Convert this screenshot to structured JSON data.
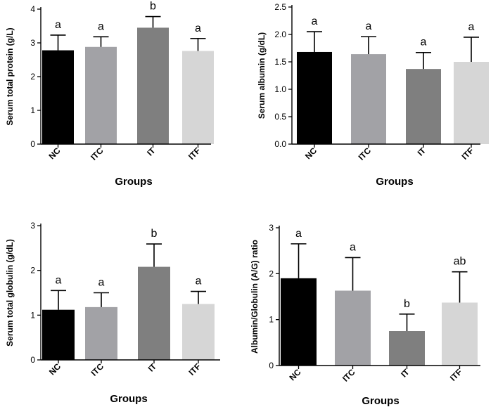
{
  "chart_data": [
    {
      "type": "bar",
      "title": "",
      "xlabel": "Groups",
      "ylabel": "Serum total protein (g/L)",
      "categories": [
        "NC",
        "ITC",
        "IT",
        "ITF"
      ],
      "values": [
        2.78,
        2.88,
        3.45,
        2.76
      ],
      "errors": [
        0.45,
        0.3,
        0.33,
        0.37
      ],
      "significance": [
        "a",
        "a",
        "b",
        "a"
      ],
      "ylim": [
        0,
        4
      ],
      "yticks": [
        "0",
        "1",
        "2",
        "3",
        "4"
      ],
      "colors": [
        "#000000",
        "#a2a2a6",
        "#7f7f7f",
        "#d6d6d6"
      ],
      "grid": false
    },
    {
      "type": "bar",
      "title": "",
      "xlabel": "Groups",
      "ylabel": "Serum albumin (g/dL)",
      "categories": [
        "NC",
        "ITC",
        "IT",
        "ITF"
      ],
      "values": [
        1.68,
        1.64,
        1.37,
        1.5
      ],
      "errors": [
        0.37,
        0.32,
        0.3,
        0.45
      ],
      "significance": [
        "a",
        "a",
        "a",
        "a"
      ],
      "ylim": [
        0,
        2.5
      ],
      "yticks": [
        "0.0",
        "0.5",
        "1.0",
        "1.5",
        "2.0",
        "2.5"
      ],
      "colors": [
        "#000000",
        "#a2a2a6",
        "#7f7f7f",
        "#d6d6d6"
      ],
      "grid": false
    },
    {
      "type": "bar",
      "title": "",
      "xlabel": "Groups",
      "ylabel": "Serum total globulin (g/dL)",
      "categories": [
        "NC",
        "ITC",
        "IT",
        "ITF"
      ],
      "values": [
        1.12,
        1.18,
        2.08,
        1.25
      ],
      "errors": [
        0.43,
        0.32,
        0.51,
        0.28
      ],
      "significance": [
        "a",
        "a",
        "b",
        "a"
      ],
      "ylim": [
        0,
        3
      ],
      "yticks": [
        "0",
        "1",
        "2",
        "3"
      ],
      "colors": [
        "#000000",
        "#a2a2a6",
        "#7f7f7f",
        "#d6d6d6"
      ],
      "grid": false
    },
    {
      "type": "bar",
      "title": "",
      "xlabel": "Groups",
      "ylabel": "Albumin/Globulin (A/G) ratio",
      "categories": [
        "NC",
        "ITC",
        "IT",
        "ITF"
      ],
      "values": [
        1.9,
        1.63,
        0.75,
        1.37
      ],
      "errors": [
        0.75,
        0.72,
        0.37,
        0.67
      ],
      "significance": [
        "a",
        "a",
        "b",
        "ab"
      ],
      "ylim": [
        0,
        3
      ],
      "yticks": [
        "0",
        "1",
        "2",
        "3"
      ],
      "colors": [
        "#000000",
        "#a2a2a6",
        "#7f7f7f",
        "#d6d6d6"
      ],
      "grid": false
    }
  ]
}
